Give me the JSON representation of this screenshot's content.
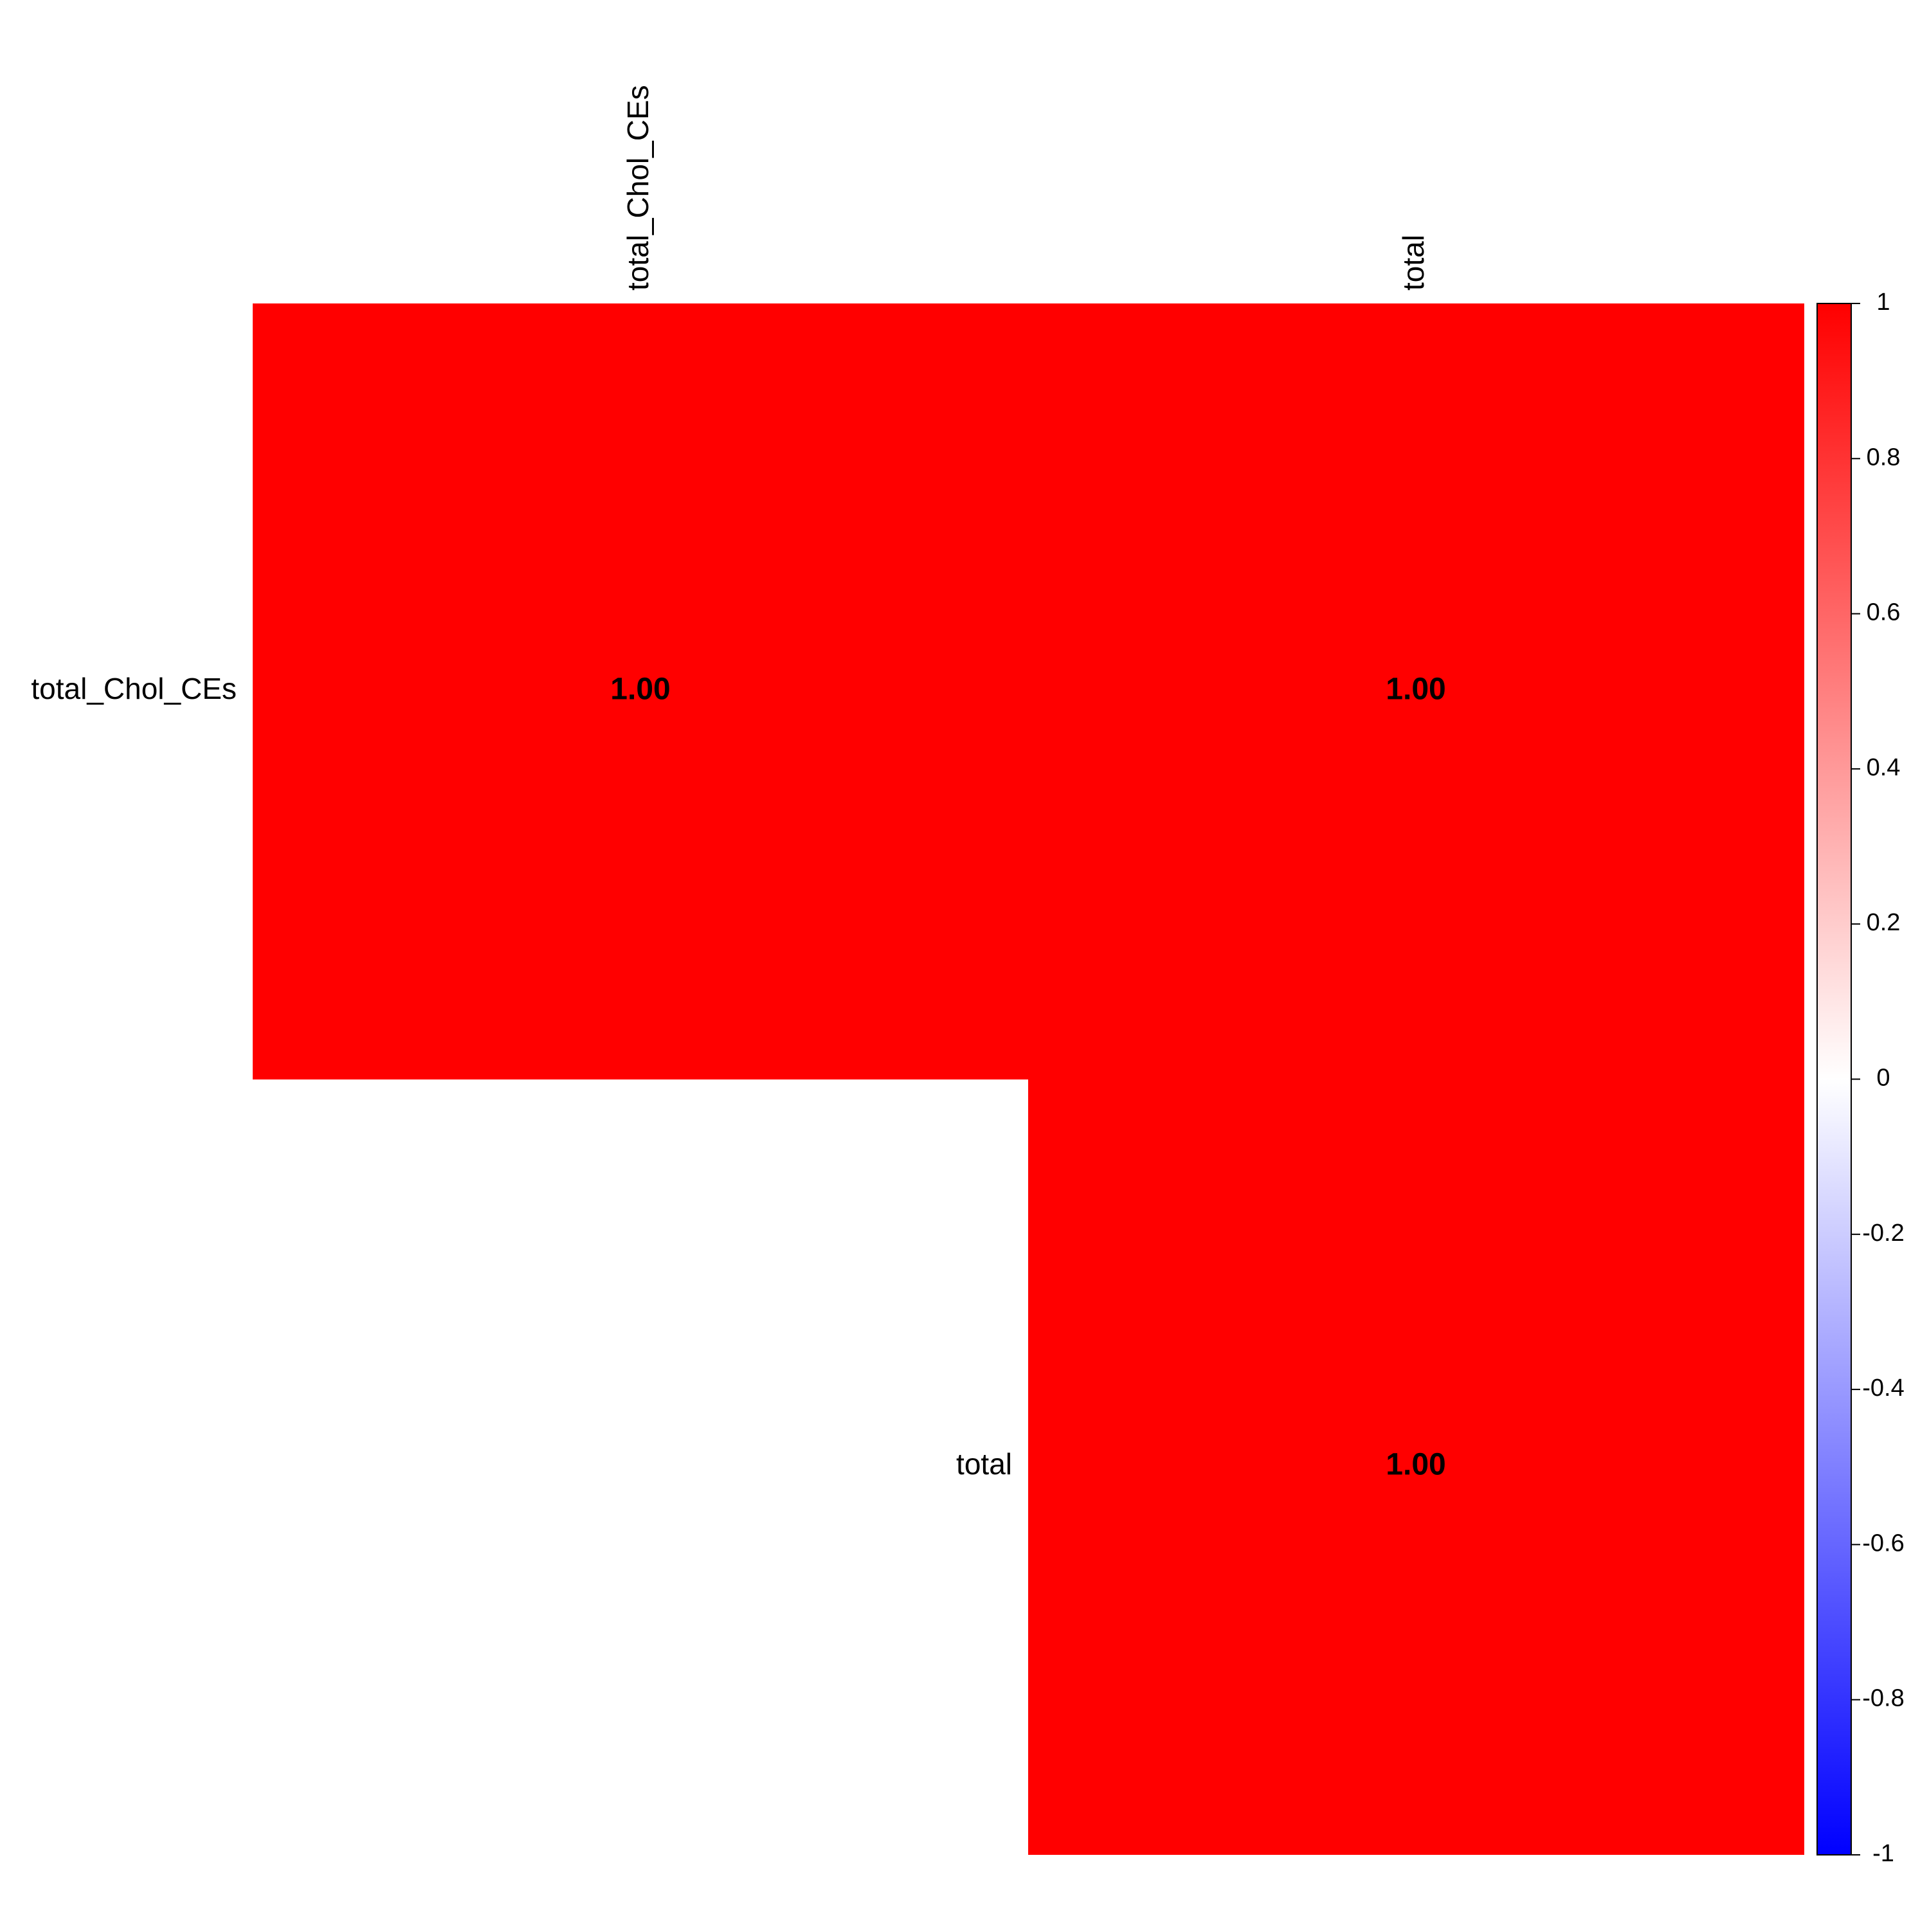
{
  "chart_data": {
    "type": "heatmap",
    "variables": [
      "total_Chol_CEs",
      "total"
    ],
    "shape": "upper",
    "cells": [
      {
        "row": "total_Chol_CEs",
        "col": "total_Chol_CEs",
        "value": 1.0,
        "label": "1.00"
      },
      {
        "row": "total_Chol_CEs",
        "col": "total",
        "value": 1.0,
        "label": "1.00"
      },
      {
        "row": "total",
        "col": "total",
        "value": 1.0,
        "label": "1.00"
      }
    ],
    "colorbar": {
      "range": [
        -1,
        1
      ],
      "ticks": [
        1,
        0.8,
        0.6,
        0.4,
        0.2,
        0,
        -0.2,
        -0.4,
        -0.6,
        -0.8,
        -1
      ],
      "tick_labels": [
        "1",
        "0.8",
        "0.6",
        "0.4",
        "0.2",
        "0",
        "-0.2",
        "-0.4",
        "-0.6",
        "-0.8",
        "-1"
      ],
      "low_color": "#0000ff",
      "mid_color": "#ffffff",
      "high_color": "#ff0000"
    },
    "legend_position": "right"
  }
}
